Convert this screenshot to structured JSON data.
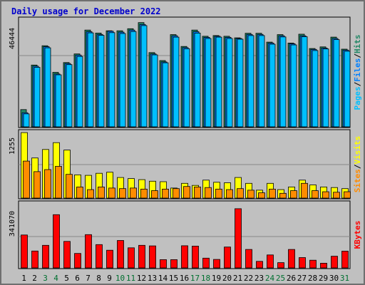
{
  "chart_data": {
    "type": "bar",
    "title": "Daily usage for December 2022",
    "categories": [
      "1",
      "2",
      "3",
      "4",
      "5",
      "6",
      "7",
      "8",
      "9",
      "10",
      "11",
      "12",
      "13",
      "14",
      "15",
      "16",
      "17",
      "18",
      "19",
      "20",
      "21",
      "22",
      "23",
      "24",
      "25",
      "26",
      "27",
      "28",
      "29",
      "30",
      "31"
    ],
    "weekend_days": [
      "3",
      "4",
      "10",
      "11",
      "17",
      "18",
      "24",
      "25",
      "31"
    ],
    "colors": {
      "hits": "#228866",
      "files": "#00bfff",
      "pages": "#00bfff",
      "visits": "#ffff00",
      "sites": "#ff8c00",
      "kbytes": "#ff0000",
      "weekday_label": "#000000",
      "weekend_label": "#007030",
      "background": "#c0c0c0",
      "title": "#0000cc"
    },
    "panels": [
      {
        "id": "top",
        "max_label": "46444",
        "ylim": [
          0,
          46444
        ],
        "side_labels": [
          {
            "text": "Pages",
            "color": "#00bfff"
          },
          {
            "text": "/",
            "color": "#000000"
          },
          {
            "text": "Files",
            "color": "#0080ff"
          },
          {
            "text": "/",
            "color": "#000000"
          },
          {
            "text": "Hits",
            "color": "#228866"
          }
        ],
        "series": [
          {
            "name": "Hits",
            "color": "#228866",
            "values": [
              7600,
              27200,
              35700,
              24000,
              28300,
              32100,
              42600,
              41300,
              42300,
              42300,
              43200,
              45900,
              32700,
              29200,
              40600,
              35400,
              42600,
              39900,
              40200,
              39900,
              39200,
              41200,
              41200,
              37300,
              40600,
              36900,
              40800,
              34500,
              35200,
              39500,
              34200
            ]
          },
          {
            "name": "Files",
            "color": "#0080ff",
            "values": [
              6200,
              26700,
              35300,
              23300,
              27900,
              31600,
              41900,
              40700,
              42100,
              41700,
              42600,
              45100,
              32100,
              28600,
              40100,
              34900,
              41900,
              39400,
              39900,
              39400,
              38900,
              40700,
              40700,
              36900,
              40100,
              36600,
              40100,
              34100,
              34700,
              38900,
              33800
            ]
          },
          {
            "name": "Pages",
            "color": "#00bfff",
            "values": [
              5700,
              26200,
              34800,
              22900,
              27400,
              31000,
              41400,
              40300,
              41500,
              41100,
              42000,
              44600,
              31700,
              28200,
              39500,
              34400,
              41300,
              38900,
              39500,
              38900,
              38600,
              40200,
              40200,
              36400,
              39600,
              36100,
              39700,
              33600,
              34300,
              38400,
              33300
            ]
          }
        ]
      },
      {
        "id": "middle",
        "max_label": "1255",
        "ylim": [
          0,
          1255
        ],
        "side_labels": [
          {
            "text": "Sites",
            "color": "#ff8c00"
          },
          {
            "text": "/",
            "color": "#000000"
          },
          {
            "text": "Visits",
            "color": "#ffff00"
          }
        ],
        "series": [
          {
            "name": "Visits",
            "color": "#ffff00",
            "values": [
              1240,
              760,
              920,
              1050,
              910,
              440,
              430,
              470,
              490,
              390,
              370,
              350,
              320,
              310,
              190,
              280,
              240,
              340,
              300,
              290,
              390,
              280,
              150,
              280,
              160,
              210,
              340,
              250,
              210,
              200,
              180
            ]
          },
          {
            "name": "Sites",
            "color": "#ff8c00",
            "values": [
              700,
              500,
              540,
              600,
              450,
              210,
              160,
              210,
              190,
              180,
              190,
              170,
              140,
              170,
              180,
              220,
              210,
              200,
              170,
              160,
              180,
              150,
              100,
              170,
              90,
              140,
              280,
              140,
              120,
              110,
              120
            ]
          }
        ]
      },
      {
        "id": "bottom",
        "max_label": "341070",
        "ylim": [
          0,
          341070
        ],
        "side_labels": [
          {
            "text": "KBytes",
            "color": "#ff0000"
          }
        ],
        "series": [
          {
            "name": "KBytes",
            "color": "#ff0000",
            "values": [
              175000,
              90000,
              120000,
              283000,
              141000,
              77000,
              177000,
              124000,
              94000,
              146000,
              107000,
              120000,
              117000,
              44000,
              44000,
              118000,
              116000,
              52000,
              45000,
              111000,
              315000,
              98000,
              35000,
              69000,
              28000,
              98000,
              55000,
              41000,
              25000,
              62000,
              89000
            ]
          }
        ]
      }
    ]
  }
}
